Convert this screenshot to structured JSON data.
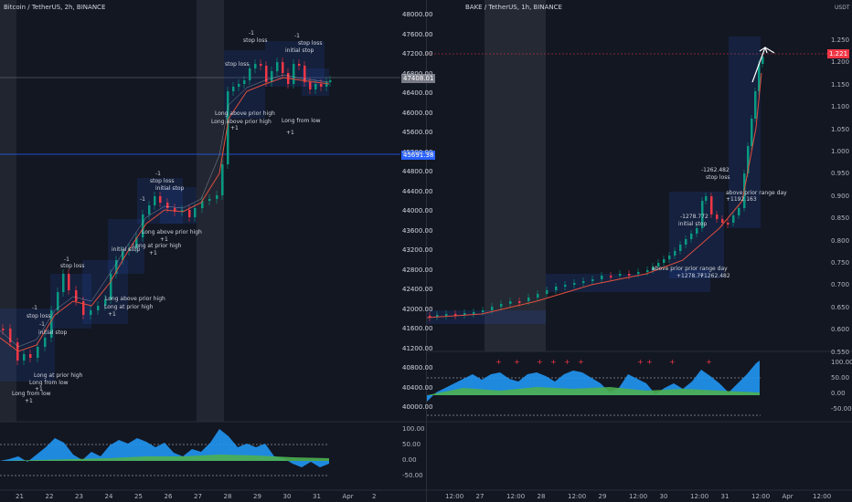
{
  "left": {
    "header": "Bitcoin / TetherUS, 2h, BINANCE",
    "price_labels": [
      "48000.00",
      "47600.00",
      "47200.00",
      "46800.00",
      "46400.00",
      "46000.00",
      "45600.00",
      "45200.00",
      "44800.00",
      "44400.00",
      "44000.00",
      "43600.00",
      "43200.00",
      "42800.00",
      "42400.00",
      "42000.00",
      "41600.00",
      "41200.00",
      "40800.00",
      "40400.00",
      "40000.00"
    ],
    "indicator_labels": [
      "100.00",
      "50.00",
      "0.00",
      "-50.00"
    ],
    "time_labels": [
      "21",
      "22",
      "23",
      "24",
      "25",
      "26",
      "27",
      "28",
      "29",
      "30",
      "31",
      "Apr",
      "2"
    ],
    "current_price": "47408.01",
    "level_price": "45691.38",
    "annotations": {
      "a1": "-1",
      "a2": "stop loss",
      "a3": "-1",
      "a4": "initial stop",
      "a5": "Long at prior high",
      "a6": "Long from low",
      "a7": "+1",
      "a8": "Long from low",
      "a9": "+1",
      "a10": "-1",
      "a11": "stop loss",
      "a12": "Long above prior high",
      "a13": "Long at prior high",
      "a14": "+1",
      "a15": "initial stop",
      "a16": "-1",
      "a17": "stop loss",
      "a18": "-1",
      "a19": "initial stop",
      "a20": "Long above prior high",
      "a21": "+1",
      "a22": "Long at prior high",
      "a23": "+1",
      "a24": "-1",
      "a25": "stop loss",
      "a26": "-1",
      "a27": "stop loss",
      "a28": "initial stop",
      "a29": "stop loss",
      "a30": "Long above prior high",
      "a31": "Long above prior high",
      "a32": "+1",
      "a33": "Long from low",
      "a34": "+1"
    }
  },
  "right": {
    "header": "BAKE / TetherUS, 1h, BINANCE",
    "unit": "USDT",
    "price_labels": [
      "1.250",
      "1.200",
      "1.150",
      "1.100",
      "1.050",
      "1.000",
      "0.950",
      "0.900",
      "0.850",
      "0.800",
      "0.750",
      "0.700",
      "0.650",
      "0.600",
      "0.550"
    ],
    "indicator_labels": [
      "100.00",
      "50.00",
      "0.00",
      "-50.00"
    ],
    "time_labels": [
      "12:00",
      "27",
      "12:00",
      "28",
      "12:00",
      "29",
      "12:00",
      "30",
      "12:00",
      "31",
      "12:00",
      "Apr",
      "12:00"
    ],
    "current_price": "1.221",
    "annotations": {
      "b1": "-1262.482",
      "b2": "stop loss",
      "b3": "-1278.772",
      "b4": "initial stop",
      "b5": "above prior range day",
      "b6": "+1192.163",
      "b7": "above prior prior range day",
      "b8": "+1278.77",
      "b9": "+1262.482"
    }
  }
}
